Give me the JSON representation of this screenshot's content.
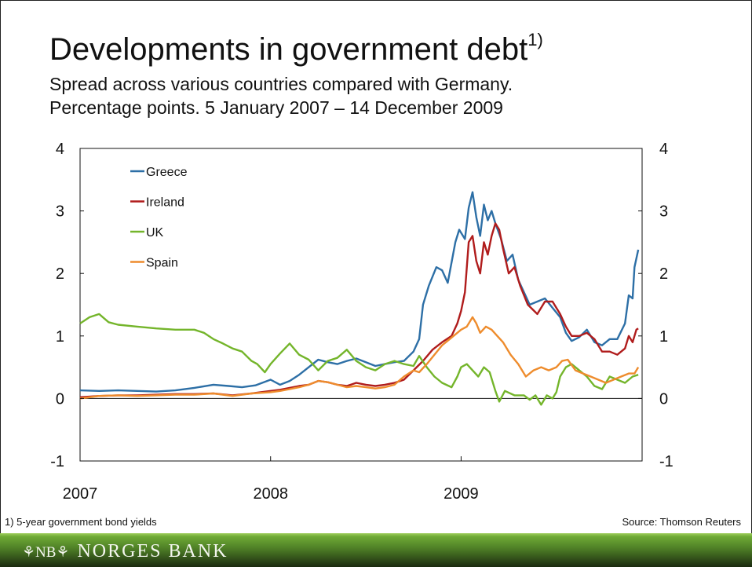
{
  "slide": {
    "title": "Developments in government debt",
    "title_superscript": "1)",
    "subtitle_line1": "Spread across various countries compared with Germany.",
    "subtitle_line2": "Percentage points. 5 January 2007 – 14 December 2009",
    "footnote": "1) 5-year government bond yields",
    "source": "Source: Thomson Reuters",
    "bank_mark": "⚘NB⚘",
    "bank_name": "NORGES BANK"
  },
  "chart_data": {
    "type": "line",
    "title": "Developments in government debt",
    "xlabel": "",
    "ylabel": "",
    "x_ticks": [
      "2007",
      "2008",
      "2009"
    ],
    "x_tick_values": [
      2007.0,
      2008.0,
      2009.0
    ],
    "xlim": [
      2007.0,
      2009.95
    ],
    "ylim": [
      -1,
      4
    ],
    "y_ticks": [
      -1,
      0,
      1,
      2,
      3,
      4
    ],
    "y_ticks_mirrored_right": true,
    "grid": false,
    "legend_position": "top-left",
    "series": [
      {
        "name": "Greece",
        "color": "#2d6fa6",
        "points": [
          [
            2007.0,
            0.13
          ],
          [
            2007.1,
            0.12
          ],
          [
            2007.2,
            0.13
          ],
          [
            2007.3,
            0.12
          ],
          [
            2007.4,
            0.11
          ],
          [
            2007.5,
            0.13
          ],
          [
            2007.6,
            0.17
          ],
          [
            2007.7,
            0.22
          ],
          [
            2007.78,
            0.2
          ],
          [
            2007.85,
            0.18
          ],
          [
            2007.92,
            0.21
          ],
          [
            2008.0,
            0.3
          ],
          [
            2008.05,
            0.22
          ],
          [
            2008.1,
            0.28
          ],
          [
            2008.15,
            0.38
          ],
          [
            2008.2,
            0.5
          ],
          [
            2008.25,
            0.62
          ],
          [
            2008.3,
            0.58
          ],
          [
            2008.35,
            0.55
          ],
          [
            2008.4,
            0.6
          ],
          [
            2008.45,
            0.64
          ],
          [
            2008.5,
            0.58
          ],
          [
            2008.55,
            0.52
          ],
          [
            2008.6,
            0.55
          ],
          [
            2008.65,
            0.58
          ],
          [
            2008.7,
            0.6
          ],
          [
            2008.75,
            0.75
          ],
          [
            2008.78,
            0.95
          ],
          [
            2008.8,
            1.5
          ],
          [
            2008.83,
            1.8
          ],
          [
            2008.87,
            2.1
          ],
          [
            2008.9,
            2.05
          ],
          [
            2008.93,
            1.85
          ],
          [
            2008.97,
            2.5
          ],
          [
            2008.99,
            2.7
          ],
          [
            2009.02,
            2.55
          ],
          [
            2009.04,
            3.05
          ],
          [
            2009.06,
            3.3
          ],
          [
            2009.08,
            2.9
          ],
          [
            2009.1,
            2.6
          ],
          [
            2009.12,
            3.1
          ],
          [
            2009.14,
            2.85
          ],
          [
            2009.16,
            3.0
          ],
          [
            2009.18,
            2.8
          ],
          [
            2009.21,
            2.55
          ],
          [
            2009.24,
            2.2
          ],
          [
            2009.27,
            2.3
          ],
          [
            2009.3,
            1.9
          ],
          [
            2009.33,
            1.7
          ],
          [
            2009.36,
            1.5
          ],
          [
            2009.4,
            1.55
          ],
          [
            2009.44,
            1.6
          ],
          [
            2009.48,
            1.45
          ],
          [
            2009.52,
            1.3
          ],
          [
            2009.55,
            1.05
          ],
          [
            2009.58,
            0.92
          ],
          [
            2009.62,
            0.98
          ],
          [
            2009.66,
            1.1
          ],
          [
            2009.7,
            0.9
          ],
          [
            2009.74,
            0.85
          ],
          [
            2009.78,
            0.95
          ],
          [
            2009.82,
            0.95
          ],
          [
            2009.86,
            1.2
          ],
          [
            2009.88,
            1.65
          ],
          [
            2009.9,
            1.6
          ],
          [
            2009.91,
            2.1
          ],
          [
            2009.93,
            2.38
          ]
        ]
      },
      {
        "name": "Ireland",
        "color": "#b01c1c",
        "points": [
          [
            2007.0,
            0.02
          ],
          [
            2007.1,
            0.04
          ],
          [
            2007.2,
            0.05
          ],
          [
            2007.3,
            0.05
          ],
          [
            2007.4,
            0.06
          ],
          [
            2007.5,
            0.07
          ],
          [
            2007.6,
            0.07
          ],
          [
            2007.7,
            0.08
          ],
          [
            2007.8,
            0.05
          ],
          [
            2007.9,
            0.08
          ],
          [
            2008.0,
            0.12
          ],
          [
            2008.05,
            0.14
          ],
          [
            2008.1,
            0.17
          ],
          [
            2008.15,
            0.2
          ],
          [
            2008.2,
            0.22
          ],
          [
            2008.25,
            0.28
          ],
          [
            2008.3,
            0.26
          ],
          [
            2008.35,
            0.22
          ],
          [
            2008.4,
            0.2
          ],
          [
            2008.45,
            0.25
          ],
          [
            2008.5,
            0.22
          ],
          [
            2008.55,
            0.2
          ],
          [
            2008.6,
            0.22
          ],
          [
            2008.65,
            0.25
          ],
          [
            2008.7,
            0.3
          ],
          [
            2008.75,
            0.45
          ],
          [
            2008.8,
            0.6
          ],
          [
            2008.85,
            0.78
          ],
          [
            2008.9,
            0.9
          ],
          [
            2008.95,
            1.0
          ],
          [
            2008.98,
            1.2
          ],
          [
            2009.0,
            1.4
          ],
          [
            2009.02,
            1.7
          ],
          [
            2009.04,
            2.5
          ],
          [
            2009.06,
            2.6
          ],
          [
            2009.08,
            2.2
          ],
          [
            2009.1,
            2.0
          ],
          [
            2009.12,
            2.5
          ],
          [
            2009.14,
            2.3
          ],
          [
            2009.16,
            2.6
          ],
          [
            2009.18,
            2.8
          ],
          [
            2009.2,
            2.7
          ],
          [
            2009.22,
            2.4
          ],
          [
            2009.25,
            2.0
          ],
          [
            2009.28,
            2.1
          ],
          [
            2009.31,
            1.8
          ],
          [
            2009.35,
            1.5
          ],
          [
            2009.4,
            1.35
          ],
          [
            2009.44,
            1.55
          ],
          [
            2009.48,
            1.55
          ],
          [
            2009.52,
            1.35
          ],
          [
            2009.55,
            1.15
          ],
          [
            2009.58,
            1.0
          ],
          [
            2009.62,
            1.0
          ],
          [
            2009.66,
            1.05
          ],
          [
            2009.7,
            0.95
          ],
          [
            2009.74,
            0.75
          ],
          [
            2009.78,
            0.75
          ],
          [
            2009.82,
            0.7
          ],
          [
            2009.86,
            0.8
          ],
          [
            2009.88,
            1.0
          ],
          [
            2009.9,
            0.9
          ],
          [
            2009.92,
            1.1
          ],
          [
            2009.93,
            1.12
          ]
        ]
      },
      {
        "name": "UK",
        "color": "#74b52b",
        "points": [
          [
            2007.0,
            1.2
          ],
          [
            2007.05,
            1.3
          ],
          [
            2007.1,
            1.35
          ],
          [
            2007.15,
            1.22
          ],
          [
            2007.2,
            1.18
          ],
          [
            2007.3,
            1.15
          ],
          [
            2007.4,
            1.12
          ],
          [
            2007.5,
            1.1
          ],
          [
            2007.6,
            1.1
          ],
          [
            2007.65,
            1.05
          ],
          [
            2007.7,
            0.95
          ],
          [
            2007.75,
            0.88
          ],
          [
            2007.8,
            0.8
          ],
          [
            2007.85,
            0.75
          ],
          [
            2007.9,
            0.6
          ],
          [
            2007.93,
            0.55
          ],
          [
            2007.97,
            0.42
          ],
          [
            2008.0,
            0.55
          ],
          [
            2008.05,
            0.72
          ],
          [
            2008.1,
            0.88
          ],
          [
            2008.15,
            0.7
          ],
          [
            2008.2,
            0.62
          ],
          [
            2008.25,
            0.45
          ],
          [
            2008.3,
            0.6
          ],
          [
            2008.35,
            0.65
          ],
          [
            2008.4,
            0.78
          ],
          [
            2008.45,
            0.6
          ],
          [
            2008.5,
            0.5
          ],
          [
            2008.55,
            0.45
          ],
          [
            2008.6,
            0.55
          ],
          [
            2008.65,
            0.6
          ],
          [
            2008.7,
            0.55
          ],
          [
            2008.75,
            0.52
          ],
          [
            2008.78,
            0.68
          ],
          [
            2008.82,
            0.5
          ],
          [
            2008.86,
            0.35
          ],
          [
            2008.9,
            0.25
          ],
          [
            2008.95,
            0.18
          ],
          [
            2008.98,
            0.35
          ],
          [
            2009.0,
            0.5
          ],
          [
            2009.03,
            0.55
          ],
          [
            2009.06,
            0.45
          ],
          [
            2009.09,
            0.35
          ],
          [
            2009.12,
            0.5
          ],
          [
            2009.15,
            0.42
          ],
          [
            2009.18,
            0.12
          ],
          [
            2009.2,
            -0.05
          ],
          [
            2009.23,
            0.12
          ],
          [
            2009.28,
            0.05
          ],
          [
            2009.33,
            0.05
          ],
          [
            2009.36,
            -0.02
          ],
          [
            2009.39,
            0.05
          ],
          [
            2009.42,
            -0.1
          ],
          [
            2009.45,
            0.05
          ],
          [
            2009.48,
            0.0
          ],
          [
            2009.5,
            0.1
          ],
          [
            2009.52,
            0.35
          ],
          [
            2009.55,
            0.5
          ],
          [
            2009.58,
            0.55
          ],
          [
            2009.62,
            0.45
          ],
          [
            2009.66,
            0.35
          ],
          [
            2009.7,
            0.2
          ],
          [
            2009.74,
            0.15
          ],
          [
            2009.78,
            0.35
          ],
          [
            2009.82,
            0.3
          ],
          [
            2009.86,
            0.25
          ],
          [
            2009.9,
            0.35
          ],
          [
            2009.93,
            0.38
          ]
        ]
      },
      {
        "name": "Spain",
        "color": "#ee8c2d",
        "points": [
          [
            2007.0,
            0.0
          ],
          [
            2007.1,
            0.04
          ],
          [
            2007.2,
            0.05
          ],
          [
            2007.3,
            0.04
          ],
          [
            2007.4,
            0.05
          ],
          [
            2007.5,
            0.06
          ],
          [
            2007.6,
            0.06
          ],
          [
            2007.7,
            0.08
          ],
          [
            2007.8,
            0.04
          ],
          [
            2007.9,
            0.08
          ],
          [
            2008.0,
            0.1
          ],
          [
            2008.05,
            0.12
          ],
          [
            2008.1,
            0.15
          ],
          [
            2008.15,
            0.18
          ],
          [
            2008.2,
            0.22
          ],
          [
            2008.25,
            0.28
          ],
          [
            2008.3,
            0.26
          ],
          [
            2008.35,
            0.22
          ],
          [
            2008.4,
            0.18
          ],
          [
            2008.45,
            0.2
          ],
          [
            2008.5,
            0.18
          ],
          [
            2008.55,
            0.16
          ],
          [
            2008.6,
            0.18
          ],
          [
            2008.65,
            0.22
          ],
          [
            2008.7,
            0.35
          ],
          [
            2008.75,
            0.45
          ],
          [
            2008.78,
            0.42
          ],
          [
            2008.82,
            0.55
          ],
          [
            2008.86,
            0.7
          ],
          [
            2008.9,
            0.85
          ],
          [
            2008.94,
            0.95
          ],
          [
            2008.98,
            1.05
          ],
          [
            2009.0,
            1.1
          ],
          [
            2009.03,
            1.15
          ],
          [
            2009.06,
            1.3
          ],
          [
            2009.08,
            1.2
          ],
          [
            2009.1,
            1.05
          ],
          [
            2009.13,
            1.15
          ],
          [
            2009.16,
            1.1
          ],
          [
            2009.19,
            1.0
          ],
          [
            2009.22,
            0.9
          ],
          [
            2009.26,
            0.7
          ],
          [
            2009.3,
            0.55
          ],
          [
            2009.34,
            0.35
          ],
          [
            2009.38,
            0.45
          ],
          [
            2009.42,
            0.5
          ],
          [
            2009.46,
            0.45
          ],
          [
            2009.5,
            0.5
          ],
          [
            2009.53,
            0.6
          ],
          [
            2009.56,
            0.62
          ],
          [
            2009.6,
            0.45
          ],
          [
            2009.64,
            0.4
          ],
          [
            2009.68,
            0.35
          ],
          [
            2009.72,
            0.3
          ],
          [
            2009.76,
            0.25
          ],
          [
            2009.8,
            0.3
          ],
          [
            2009.84,
            0.35
          ],
          [
            2009.88,
            0.4
          ],
          [
            2009.91,
            0.4
          ],
          [
            2009.93,
            0.5
          ]
        ]
      }
    ]
  }
}
